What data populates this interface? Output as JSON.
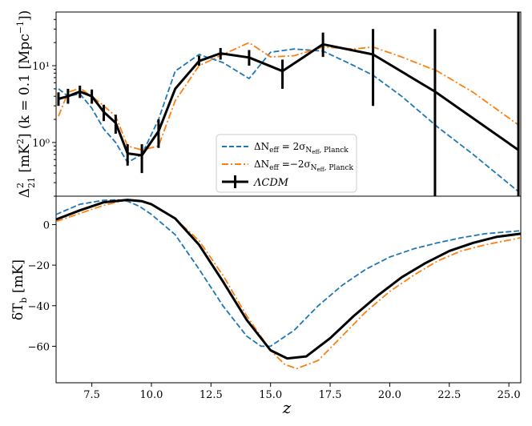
{
  "chart_data": [
    {
      "type": "line",
      "panel": "top",
      "ylabel": "Δ²₂₁ [mK²] (k = 0.1 [Mpc⁻¹])",
      "yscale": "log",
      "xlim": [
        6.0,
        25.5
      ],
      "ylim": [
        0.2,
        50
      ],
      "yticks": [
        {
          "value": 1,
          "label": "10⁰"
        },
        {
          "value": 10,
          "label": "10¹"
        }
      ],
      "legend_position": "center-right",
      "series": [
        {
          "name": "ΔNeff = 2σNeff,Planck",
          "style": "dashed",
          "color": "#1f77b4",
          "x": [
            6.1,
            6.5,
            7.0,
            7.5,
            8.0,
            8.5,
            9.0,
            9.6,
            10.3,
            11.0,
            12.0,
            13.0,
            14.1,
            15.0,
            16.0,
            17.2,
            18.5,
            19.3,
            20.5,
            22.0,
            23.5,
            25.4
          ],
          "y": [
            5.0,
            4.0,
            4.3,
            2.8,
            1.5,
            1.0,
            0.55,
            0.7,
            2.0,
            8.5,
            14.0,
            11.0,
            6.8,
            15.0,
            16.5,
            15.5,
            10.0,
            7.5,
            4.0,
            1.6,
            0.7,
            0.23
          ]
        },
        {
          "name": "ΔNeff = −2σNeff,Planck",
          "style": "dashdot",
          "color": "#ff7f0e",
          "x": [
            6.1,
            6.5,
            7.0,
            7.5,
            8.0,
            8.5,
            9.0,
            9.6,
            10.3,
            11.0,
            12.0,
            13.0,
            14.1,
            15.0,
            16.0,
            17.2,
            18.5,
            19.3,
            20.5,
            22.0,
            23.5,
            25.4
          ],
          "y": [
            2.2,
            4.5,
            5.1,
            4.0,
            3.0,
            2.2,
            0.9,
            0.8,
            0.9,
            3.5,
            10.0,
            14.0,
            20.0,
            13.0,
            13.5,
            17.5,
            16.5,
            17.5,
            13.0,
            8.5,
            4.5,
            1.7
          ]
        },
        {
          "name": "ΛCDM",
          "style": "solid",
          "color": "#000000",
          "x": [
            6.1,
            6.5,
            7.0,
            7.5,
            8.0,
            8.5,
            9.0,
            9.6,
            10.3,
            11.0,
            12.0,
            12.9,
            14.1,
            15.5,
            17.2,
            19.3,
            21.9,
            25.4
          ],
          "y": [
            3.7,
            4.0,
            4.6,
            4.0,
            2.5,
            1.8,
            0.72,
            0.68,
            1.4,
            5.0,
            11.5,
            14.5,
            12.8,
            8.5,
            19.0,
            14.0,
            4.6,
            0.8
          ],
          "errorbars": [
            {
              "x": 6.1,
              "low": 3.0,
              "high": 4.5
            },
            {
              "x": 6.5,
              "low": 3.2,
              "high": 5.0
            },
            {
              "x": 7.0,
              "low": 3.8,
              "high": 5.5
            },
            {
              "x": 7.5,
              "low": 3.2,
              "high": 4.9
            },
            {
              "x": 8.0,
              "low": 1.9,
              "high": 3.1
            },
            {
              "x": 8.5,
              "low": 1.3,
              "high": 2.3
            },
            {
              "x": 9.0,
              "low": 0.5,
              "high": 0.95
            },
            {
              "x": 9.6,
              "low": 0.4,
              "high": 0.95
            },
            {
              "x": 10.3,
              "low": 0.85,
              "high": 2.0
            },
            {
              "x": 12.0,
              "low": 10.0,
              "high": 13.5
            },
            {
              "x": 12.9,
              "low": 12.0,
              "high": 17.0
            },
            {
              "x": 14.1,
              "low": 10.0,
              "high": 16.0
            },
            {
              "x": 15.5,
              "low": 5.0,
              "high": 12.0
            },
            {
              "x": 17.2,
              "low": 13.0,
              "high": 27.0
            },
            {
              "x": 19.3,
              "low": 3.0,
              "high": 30.0
            },
            {
              "x": 21.9,
              "low": 0.2,
              "high": 30.0
            },
            {
              "x": 25.4,
              "low": 0.2,
              "high": 50.0
            }
          ]
        }
      ]
    },
    {
      "type": "line",
      "panel": "bottom",
      "xlabel": "z",
      "ylabel": "δT_b [mK]",
      "xlim": [
        6.0,
        25.5
      ],
      "ylim": [
        -78,
        14
      ],
      "xticks": [
        7.5,
        10.0,
        12.5,
        15.0,
        17.5,
        20.0,
        22.5,
        25.0
      ],
      "yticks": [
        0,
        -20,
        -40,
        -60
      ],
      "series": [
        {
          "name": "ΔNeff = 2σNeff,Planck",
          "style": "dashed",
          "color": "#1f77b4",
          "x": [
            6.0,
            7.0,
            8.0,
            8.6,
            9.0,
            9.5,
            10.0,
            11.0,
            12.0,
            13.0,
            14.0,
            14.6,
            15.0,
            16.0,
            17.0,
            18.0,
            19.0,
            20.0,
            21.0,
            22.0,
            23.0,
            24.0,
            25.5
          ],
          "y": [
            5,
            10,
            12,
            12.2,
            11.5,
            9,
            5,
            -5,
            -22,
            -40,
            -55,
            -60,
            -60,
            -52,
            -40,
            -30,
            -22,
            -16,
            -12,
            -9,
            -6.5,
            -4.5,
            -3
          ]
        },
        {
          "name": "ΔNeff = −2σNeff,Planck",
          "style": "dashdot",
          "color": "#ff7f0e",
          "x": [
            6.0,
            7.0,
            8.0,
            9.0,
            9.6,
            10.0,
            11.0,
            12.0,
            13.0,
            14.0,
            15.0,
            15.6,
            16.1,
            17.0,
            18.0,
            19.0,
            20.0,
            21.0,
            22.0,
            23.0,
            24.0,
            25.5
          ],
          "y": [
            1.5,
            5.5,
            9.5,
            12.3,
            11.5,
            10,
            3,
            -8,
            -25,
            -45,
            -62,
            -69,
            -71,
            -67,
            -55,
            -43,
            -33,
            -25,
            -18,
            -13,
            -10,
            -6.5
          ]
        },
        {
          "name": "ΛCDM",
          "style": "solid",
          "color": "#000000",
          "x": [
            6.0,
            7.0,
            8.0,
            9.0,
            9.6,
            10.0,
            11.0,
            12.0,
            13.0,
            14.0,
            15.0,
            15.7,
            16.5,
            17.5,
            18.5,
            19.5,
            20.5,
            21.5,
            22.5,
            23.5,
            24.5,
            25.5
          ],
          "y": [
            2.5,
            7,
            11,
            12.2,
            11.5,
            10,
            3,
            -10,
            -28,
            -47,
            -62,
            -66,
            -65,
            -56,
            -45,
            -35,
            -26,
            -19,
            -13,
            -9,
            -6,
            -4.5
          ]
        }
      ]
    }
  ],
  "legend": {
    "entries": [
      {
        "prefix": "ΔN",
        "sub1": "eff",
        "mid": " = 2σ",
        "sub2": "N",
        "sub3": "eff",
        "sub4": ", Planck"
      },
      {
        "prefix": "ΔN",
        "sub1": "eff",
        "mid": " =−2σ",
        "sub2": "N",
        "sub3": "eff",
        "sub4": ", Planck"
      },
      {
        "label": "ΛCDM"
      }
    ]
  },
  "labels": {
    "top_y_main": "Δ",
    "top_y_sup": "2",
    "top_y_sub": "21",
    "top_y_rest": " [mK",
    "top_y_sup2": "2",
    "top_y_rest2": "] (k = 0.1 [Mpc",
    "top_y_sup3": "−1",
    "top_y_rest3": "])",
    "bottom_y_main": "δT",
    "bottom_y_sub": "b",
    "bottom_y_rest": " [mK]",
    "x_main": "z"
  }
}
